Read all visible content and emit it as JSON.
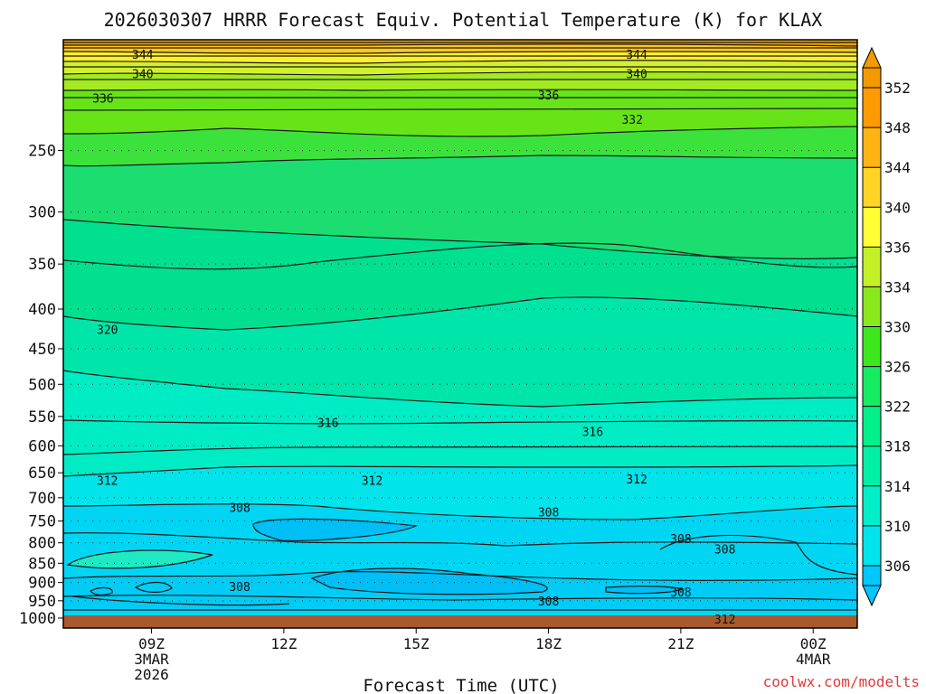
{
  "title": "2026030307 HRRR Forecast Equiv. Potential Temperature (K) for KLAX",
  "watermark": "coolwx.com/modelts",
  "chart_data": {
    "type": "contour",
    "title": "2026030307 HRRR Forecast Equiv. Potential Temperature (K) for KLAX",
    "xlabel": "Forecast Time (UTC)",
    "ylabel": "",
    "x_ticks": [
      {
        "hour": 9,
        "lines": [
          "09Z",
          "3MAR",
          "2026"
        ]
      },
      {
        "hour": 12,
        "lines": [
          "12Z"
        ]
      },
      {
        "hour": 15,
        "lines": [
          "15Z"
        ]
      },
      {
        "hour": 18,
        "lines": [
          "18Z"
        ]
      },
      {
        "hour": 21,
        "lines": [
          "21Z"
        ]
      },
      {
        "hour": 24,
        "lines": [
          "00Z",
          "4MAR"
        ]
      }
    ],
    "xlim_hours": [
      7,
      25
    ],
    "y_scale": "log-pressure",
    "ylim_hPa": [
      1030,
      180
    ],
    "y_ticks_hPa": [
      1000,
      950,
      900,
      850,
      800,
      750,
      700,
      650,
      600,
      550,
      500,
      450,
      400,
      350,
      300,
      250
    ],
    "colorbar": {
      "ticks": [
        306,
        310,
        314,
        318,
        322,
        326,
        330,
        334,
        336,
        340,
        344,
        348,
        352
      ],
      "colors": [
        "#00c8ff",
        "#00e4ee",
        "#00eec8",
        "#00f0a6",
        "#00f08a",
        "#16ec62",
        "#3ce81c",
        "#8ae81c",
        "#c4f028",
        "#ffff33",
        "#ffd424",
        "#ffb414",
        "#ff9a00",
        "#f49a00"
      ]
    },
    "contour_labels": [
      {
        "hour": 8.8,
        "p": 188,
        "value": 344
      },
      {
        "hour": 20.0,
        "p": 188,
        "value": 344
      },
      {
        "hour": 8.8,
        "p": 199,
        "value": 340
      },
      {
        "hour": 20.0,
        "p": 199,
        "value": 340
      },
      {
        "hour": 7.9,
        "p": 214,
        "value": 336
      },
      {
        "hour": 18.0,
        "p": 212,
        "value": 336
      },
      {
        "hour": 19.9,
        "p": 228,
        "value": 332
      },
      {
        "hour": 8.0,
        "p": 425,
        "value": 320
      },
      {
        "hour": 13.0,
        "p": 560,
        "value": 316
      },
      {
        "hour": 19.0,
        "p": 575,
        "value": 316
      },
      {
        "hour": 8.0,
        "p": 665,
        "value": 312
      },
      {
        "hour": 14.0,
        "p": 665,
        "value": 312
      },
      {
        "hour": 20.0,
        "p": 662,
        "value": 312
      },
      {
        "hour": 11.0,
        "p": 720,
        "value": 308
      },
      {
        "hour": 18.0,
        "p": 730,
        "value": 308
      },
      {
        "hour": 21.0,
        "p": 790,
        "value": 308
      },
      {
        "hour": 22.0,
        "p": 815,
        "value": 308
      },
      {
        "hour": 11.0,
        "p": 910,
        "value": 308
      },
      {
        "hour": 21.0,
        "p": 925,
        "value": 308
      },
      {
        "hour": 18.0,
        "p": 950,
        "value": 308
      },
      {
        "hour": 22.0,
        "p": 1003,
        "value": 312
      }
    ],
    "grid": true,
    "legend": "colorbar-right"
  }
}
